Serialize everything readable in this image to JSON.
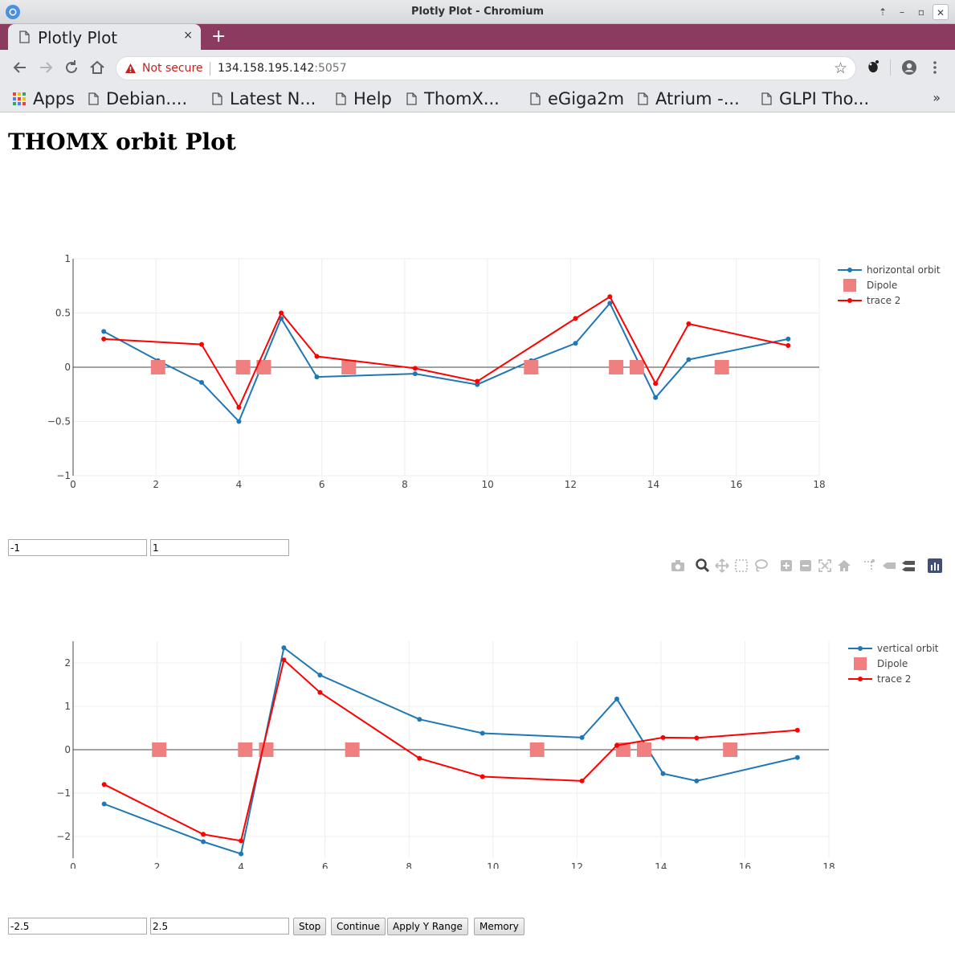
{
  "window": {
    "title": "Plotly Plot - Chromium"
  },
  "tab": {
    "label": "Plotly Plot",
    "close": "×",
    "new": "+"
  },
  "address": {
    "security_label": "Not secure",
    "host": "134.158.195.142",
    "port": ":5057"
  },
  "bookmarks": {
    "items": [
      {
        "label": "Apps",
        "icon": "apps-grid-icon"
      },
      {
        "label": "Debian....",
        "icon": "page-icon"
      },
      {
        "label": "Latest N...",
        "icon": "page-icon"
      },
      {
        "label": "Help",
        "icon": "page-icon"
      },
      {
        "label": "ThomX...",
        "icon": "page-icon"
      },
      {
        "label": "eGiga2m",
        "icon": "page-icon"
      },
      {
        "label": "Atrium -...",
        "icon": "page-icon"
      },
      {
        "label": "GLPI Tho...",
        "icon": "page-icon"
      }
    ],
    "more": "»"
  },
  "page": {
    "title": "THOMX orbit Plot"
  },
  "controls": {
    "h_min": "-1",
    "h_max": "1",
    "v_min": "-2.5",
    "v_max": "2.5",
    "stop": "Stop",
    "continue": "Continue",
    "apply": "Apply Y Range",
    "memory": "Memory"
  },
  "colors": {
    "orbit": "#1f77b4",
    "trace2": "#ff0000",
    "dipole": "#f08080",
    "tabstrip": "#8c3b60"
  },
  "chart_data": [
    {
      "type": "line",
      "xlim": [
        0,
        18
      ],
      "ylim": [
        -1,
        1
      ],
      "xticks": [
        0,
        2,
        4,
        6,
        8,
        10,
        12,
        14,
        16,
        18
      ],
      "yticks": [
        -1,
        -0.5,
        0,
        0.5,
        1
      ],
      "ytick_labels": [
        "−1",
        "−0.5",
        "0",
        "0.5",
        "1"
      ],
      "grid": true,
      "legend_position": "top-right",
      "series": [
        {
          "name": "horizontal orbit",
          "mode": "lines+markers",
          "x": [
            0.74,
            2.05,
            3.1,
            4.0,
            5.02,
            5.88,
            8.25,
            9.75,
            11.05,
            12.12,
            12.95,
            14.05,
            14.85,
            17.25
          ],
          "y": [
            0.33,
            0.06,
            -0.14,
            -0.5,
            0.45,
            -0.09,
            -0.06,
            -0.16,
            0.06,
            0.22,
            0.59,
            -0.28,
            0.07,
            0.26
          ]
        },
        {
          "name": "Dipole",
          "mode": "markers",
          "x": [
            2.05,
            4.1,
            4.6,
            6.65,
            11.05,
            13.1,
            13.6,
            15.65
          ],
          "y": [
            0,
            0,
            0,
            0,
            0,
            0,
            0,
            0
          ]
        },
        {
          "name": "trace 2",
          "mode": "lines+markers",
          "x": [
            0.74,
            3.1,
            4.0,
            5.02,
            5.88,
            8.25,
            9.75,
            12.12,
            12.95,
            14.05,
            14.85,
            17.25
          ],
          "y": [
            0.26,
            0.21,
            -0.37,
            0.5,
            0.1,
            -0.01,
            -0.13,
            0.45,
            0.65,
            -0.15,
            0.4,
            0.2
          ]
        }
      ]
    },
    {
      "type": "line",
      "xlim": [
        0,
        18
      ],
      "ylim": [
        -2.5,
        2.5
      ],
      "xticks": [
        0,
        2,
        4,
        6,
        8,
        10,
        12,
        14,
        16,
        18
      ],
      "yticks": [
        -2,
        -1,
        0,
        1,
        2
      ],
      "ytick_labels": [
        "−2",
        "−1",
        "0",
        "1",
        "2"
      ],
      "grid": true,
      "legend_position": "top-right",
      "series": [
        {
          "name": "vertical orbit",
          "mode": "lines+markers",
          "x": [
            0.74,
            3.1,
            4.0,
            5.02,
            5.88,
            8.25,
            9.75,
            12.12,
            12.95,
            14.05,
            14.85,
            17.25
          ],
          "y": [
            -1.25,
            -2.12,
            -2.4,
            2.35,
            1.72,
            0.7,
            0.38,
            0.28,
            1.17,
            -0.55,
            -0.72,
            -0.18
          ]
        },
        {
          "name": "Dipole",
          "mode": "markers",
          "x": [
            2.05,
            4.1,
            4.6,
            6.65,
            11.05,
            13.1,
            13.6,
            15.65
          ],
          "y": [
            0,
            0,
            0,
            0,
            0,
            0,
            0,
            0
          ]
        },
        {
          "name": "trace 2",
          "mode": "lines+markers",
          "x": [
            0.74,
            3.1,
            4.0,
            5.02,
            5.88,
            8.25,
            9.75,
            12.12,
            12.95,
            14.05,
            14.85,
            17.25
          ],
          "y": [
            -0.8,
            -1.95,
            -2.1,
            2.07,
            1.32,
            -0.2,
            -0.62,
            -0.72,
            0.1,
            0.28,
            0.27,
            0.45
          ]
        }
      ]
    }
  ]
}
